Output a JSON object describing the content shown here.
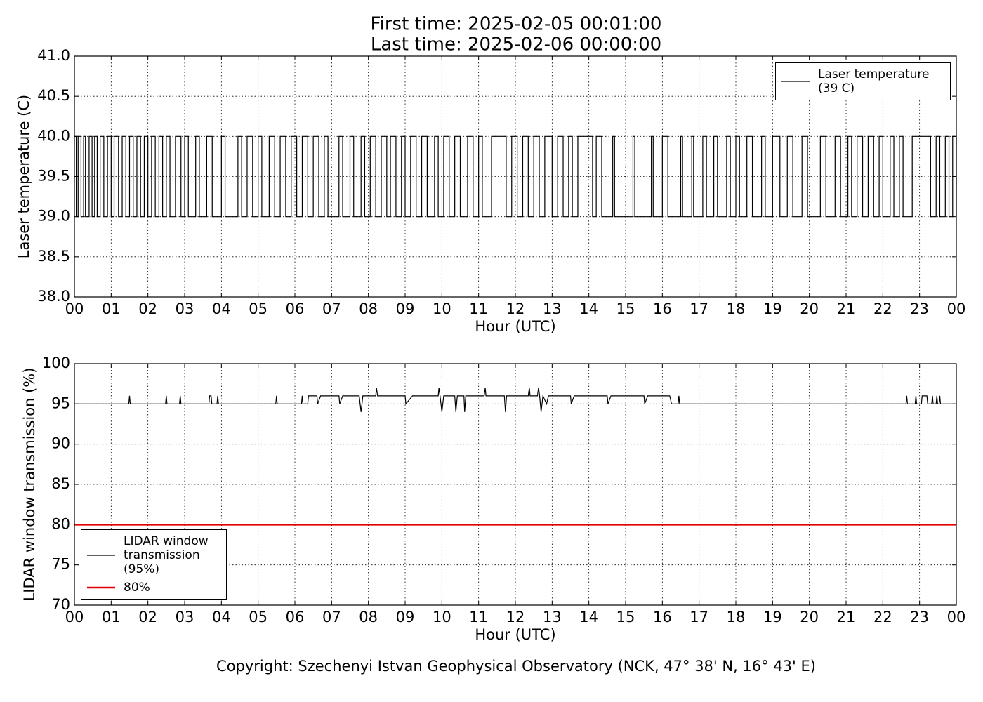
{
  "chart_data": [
    {
      "type": "line",
      "title": "First time: 2025-02-05 00:01:00",
      "subtitle": "Last time: 2025-02-06 00:00:00",
      "ylabel": "Laser temperature (C)",
      "xlabel": "Hour (UTC)",
      "grid": true,
      "legend": "upper right",
      "xlim": [
        0,
        24
      ],
      "xticks": [
        {
          "value": 0,
          "label": "00"
        },
        {
          "value": 1,
          "label": "01"
        },
        {
          "value": 2,
          "label": "02"
        },
        {
          "value": 3,
          "label": "03"
        },
        {
          "value": 4,
          "label": "04"
        },
        {
          "value": 5,
          "label": "05"
        },
        {
          "value": 6,
          "label": "06"
        },
        {
          "value": 7,
          "label": "07"
        },
        {
          "value": 8,
          "label": "08"
        },
        {
          "value": 9,
          "label": "09"
        },
        {
          "value": 10,
          "label": "10"
        },
        {
          "value": 11,
          "label": "11"
        },
        {
          "value": 12,
          "label": "12"
        },
        {
          "value": 13,
          "label": "13"
        },
        {
          "value": 14,
          "label": "14"
        },
        {
          "value": 15,
          "label": "15"
        },
        {
          "value": 16,
          "label": "16"
        },
        {
          "value": 17,
          "label": "17"
        },
        {
          "value": 18,
          "label": "18"
        },
        {
          "value": 19,
          "label": "19"
        },
        {
          "value": 20,
          "label": "20"
        },
        {
          "value": 21,
          "label": "21"
        },
        {
          "value": 22,
          "label": "22"
        },
        {
          "value": 23,
          "label": "23"
        },
        {
          "value": 24,
          "label": "00"
        }
      ],
      "ylim": [
        38,
        41
      ],
      "yticks": [
        {
          "value": 38,
          "label": "38.0"
        },
        38.5,
        {
          "value": 39,
          "label": "39.0"
        },
        39.5,
        {
          "value": 40,
          "label": "40.0"
        },
        40.5,
        {
          "value": 41,
          "label": "41.0"
        }
      ],
      "series": [
        {
          "name": "Laser temperature (39 C)",
          "color": "#000000",
          "drawstyle": "steps-post",
          "x": [
            0,
            0.05,
            0.1,
            0.18,
            0.25,
            0.3,
            0.4,
            0.48,
            0.55,
            0.62,
            0.7,
            0.8,
            0.9,
            1.0,
            1.08,
            1.2,
            1.3,
            1.4,
            1.5,
            1.6,
            1.7,
            1.8,
            1.9,
            2.0,
            2.1,
            2.2,
            2.3,
            2.4,
            2.5,
            2.6,
            2.75,
            2.9,
            3.0,
            3.1,
            3.3,
            3.4,
            3.6,
            3.75,
            4.0,
            4.1,
            4.45,
            4.55,
            4.7,
            4.85,
            5.0,
            5.1,
            5.3,
            5.45,
            5.6,
            5.75,
            5.9,
            6.05,
            6.2,
            6.35,
            6.5,
            6.65,
            6.8,
            6.9,
            7.2,
            7.3,
            7.5,
            7.6,
            7.8,
            7.9,
            8.05,
            8.2,
            8.35,
            8.5,
            8.6,
            8.75,
            8.9,
            9.0,
            9.15,
            9.3,
            9.45,
            9.6,
            9.8,
            9.9,
            10.05,
            10.2,
            10.35,
            10.5,
            10.7,
            10.85,
            11.0,
            11.1,
            11.35,
            11.75,
            11.9,
            12.05,
            12.2,
            12.35,
            12.5,
            12.65,
            12.8,
            13.0,
            13.15,
            13.3,
            13.45,
            13.55,
            13.7,
            14.1,
            14.2,
            14.35,
            14.65,
            14.7,
            15.2,
            15.25,
            15.7,
            15.75,
            16.0,
            16.15,
            16.5,
            16.55,
            16.8,
            16.85,
            17.1,
            17.2,
            17.4,
            17.5,
            17.75,
            17.85,
            18.0,
            18.1,
            18.3,
            18.45,
            18.7,
            18.8,
            19.0,
            19.2,
            19.4,
            19.55,
            19.8,
            19.95,
            20.3,
            20.45,
            20.7,
            20.85,
            21.05,
            21.15,
            21.3,
            21.45,
            21.6,
            21.75,
            21.9,
            22.0,
            22.2,
            22.3,
            22.45,
            22.55,
            22.8,
            23.3,
            23.45,
            23.55,
            23.7,
            23.8,
            23.9,
            24.0
          ],
          "values": [
            40,
            39,
            40,
            39,
            40,
            39,
            40,
            39,
            40,
            39,
            40,
            39,
            40,
            39,
            40,
            39,
            40,
            39,
            40,
            39,
            40,
            39,
            40,
            39,
            40,
            39,
            40,
            39,
            40,
            39,
            40,
            39,
            40,
            39,
            40,
            39,
            40,
            39,
            40,
            39,
            40,
            39,
            40,
            39,
            40,
            39,
            40,
            39,
            40,
            39,
            40,
            39,
            40,
            39,
            40,
            39,
            40,
            39,
            40,
            39,
            40,
            39,
            40,
            39,
            40,
            39,
            40,
            39,
            40,
            39,
            40,
            39,
            40,
            39,
            40,
            39,
            40,
            39,
            40,
            39,
            40,
            39,
            40,
            39,
            40,
            39,
            40,
            39,
            40,
            39,
            40,
            39,
            40,
            39,
            40,
            39,
            40,
            39,
            40,
            39,
            40,
            39,
            40,
            39,
            40,
            39,
            40,
            39,
            40,
            39,
            40,
            39,
            40,
            39,
            40,
            39,
            40,
            39,
            40,
            39,
            40,
            39,
            40,
            39,
            40,
            39,
            40,
            39,
            40,
            39,
            40,
            39,
            40,
            39,
            40,
            39,
            40,
            39,
            40,
            39,
            40,
            39,
            40,
            39,
            40,
            39,
            40,
            39,
            40,
            39,
            40,
            39,
            40,
            39,
            40,
            39,
            40,
            39
          ]
        }
      ]
    },
    {
      "type": "line",
      "ylabel": "LIDAR window transmission (%)",
      "xlabel": "Hour (UTC)",
      "grid": true,
      "legend": "lower left",
      "xlim": [
        0,
        24
      ],
      "xticks": [
        {
          "value": 0,
          "label": "00"
        },
        {
          "value": 1,
          "label": "01"
        },
        {
          "value": 2,
          "label": "02"
        },
        {
          "value": 3,
          "label": "03"
        },
        {
          "value": 4,
          "label": "04"
        },
        {
          "value": 5,
          "label": "05"
        },
        {
          "value": 6,
          "label": "06"
        },
        {
          "value": 7,
          "label": "07"
        },
        {
          "value": 8,
          "label": "08"
        },
        {
          "value": 9,
          "label": "09"
        },
        {
          "value": 10,
          "label": "10"
        },
        {
          "value": 11,
          "label": "11"
        },
        {
          "value": 12,
          "label": "12"
        },
        {
          "value": 13,
          "label": "13"
        },
        {
          "value": 14,
          "label": "14"
        },
        {
          "value": 15,
          "label": "15"
        },
        {
          "value": 16,
          "label": "16"
        },
        {
          "value": 17,
          "label": "17"
        },
        {
          "value": 18,
          "label": "18"
        },
        {
          "value": 19,
          "label": "19"
        },
        {
          "value": 20,
          "label": "20"
        },
        {
          "value": 21,
          "label": "21"
        },
        {
          "value": 22,
          "label": "22"
        },
        {
          "value": 23,
          "label": "23"
        },
        {
          "value": 24,
          "label": "00"
        }
      ],
      "ylim": [
        70,
        100
      ],
      "yticks": [
        70,
        75,
        80,
        85,
        90,
        95,
        100
      ],
      "series": [
        {
          "name": "LIDAR window transmission (95%)",
          "color": "#000000",
          "drawstyle": "default",
          "x": [
            0,
            1.48,
            1.5,
            1.52,
            2.48,
            2.5,
            2.52,
            2.86,
            2.88,
            2.9,
            3.66,
            3.68,
            3.72,
            3.74,
            3.88,
            3.9,
            3.92,
            5.48,
            5.5,
            5.52,
            6.18,
            6.2,
            6.22,
            6.35,
            6.37,
            6.6,
            6.62,
            6.7,
            7.2,
            7.22,
            7.3,
            7.75,
            7.8,
            7.85,
            8.2,
            8.22,
            8.25,
            9.0,
            9.02,
            9.2,
            9.9,
            9.92,
            9.95,
            10.0,
            10.05,
            10.35,
            10.38,
            10.42,
            10.6,
            10.62,
            10.65,
            11.15,
            11.18,
            11.2,
            11.7,
            11.73,
            11.76,
            12.35,
            12.38,
            12.4,
            12.6,
            12.63,
            12.66,
            12.7,
            12.75,
            12.85,
            12.9,
            13.5,
            13.52,
            13.6,
            14.5,
            14.52,
            14.6,
            15.5,
            15.52,
            15.6,
            16.2,
            16.25,
            16.43,
            16.45,
            16.47,
            22.63,
            22.65,
            22.67,
            22.88,
            22.9,
            22.92,
            23.05,
            23.07,
            23.2,
            23.22,
            23.33,
            23.35,
            23.37,
            23.45,
            23.47,
            23.49,
            23.53,
            23.55,
            23.57,
            24
          ],
          "values": [
            95,
            95,
            96,
            95,
            95,
            96,
            95,
            95,
            96,
            95,
            95,
            96,
            96,
            95,
            95,
            96,
            95,
            95,
            96,
            95,
            95,
            96,
            95,
            95,
            96,
            96,
            95,
            96,
            96,
            95,
            96,
            96,
            94,
            96,
            96,
            97,
            96,
            96,
            95,
            96,
            96,
            97,
            96,
            94,
            96,
            96,
            94,
            96,
            96,
            94,
            96,
            96,
            97,
            96,
            96,
            94,
            96,
            96,
            97,
            96,
            96,
            97,
            96,
            94,
            96,
            95,
            96,
            96,
            95,
            96,
            96,
            95,
            96,
            96,
            95,
            96,
            96,
            95,
            95,
            96,
            95,
            95,
            96,
            95,
            95,
            96,
            95,
            95,
            96,
            96,
            95,
            95,
            96,
            95,
            95,
            96,
            95,
            95,
            96,
            95,
            95
          ]
        },
        {
          "name": "80%",
          "color": "#e00000",
          "drawstyle": "default",
          "x": [
            0,
            24
          ],
          "values": [
            80,
            80
          ]
        }
      ]
    }
  ],
  "footer": "Copyright: Szechenyi Istvan Geophysical Observatory (NCK, 47° 38' N, 16° 43' E)"
}
